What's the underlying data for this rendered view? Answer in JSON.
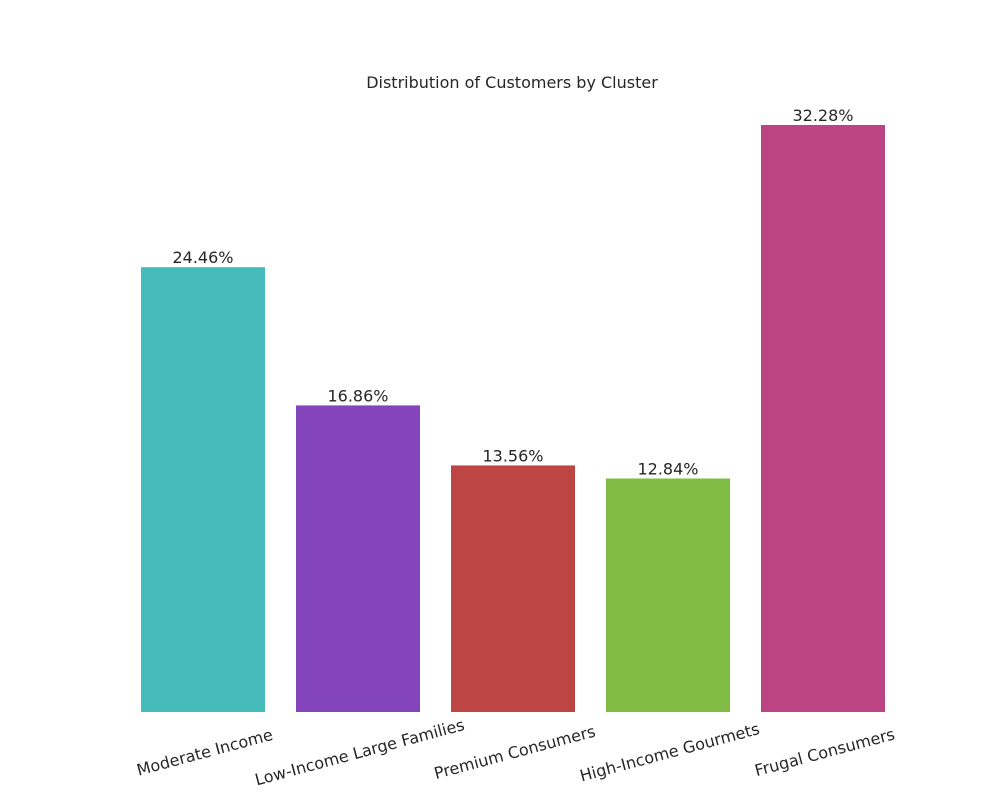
{
  "chart_data": {
    "type": "bar",
    "title": "Distribution of Customers by Cluster",
    "xlabel": "",
    "ylabel": "",
    "categories": [
      "Moderate Income",
      "Low-Income Large Families",
      "Premium Consumers",
      "High-Income Gourmets",
      "Frugal Consumers"
    ],
    "values": [
      24.46,
      16.86,
      13.56,
      12.84,
      32.28
    ],
    "value_labels": [
      "24.46%",
      "16.86%",
      "13.56%",
      "12.84%",
      "32.28%"
    ],
    "colors": [
      "#46bbbc",
      "#8444bc",
      "#bd4644",
      "#80bc44",
      "#bd4482"
    ],
    "ylim": [
      0,
      32.28
    ],
    "grid": false,
    "legend": "none"
  }
}
